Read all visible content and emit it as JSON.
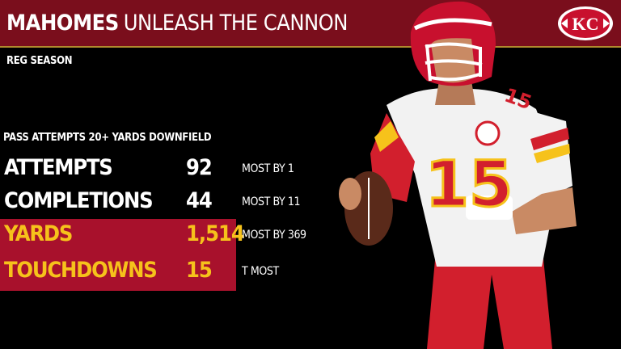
{
  "header": {
    "player": "MAHOMES",
    "headline": "UNLEASH THE CANNON",
    "logo_text": "KC"
  },
  "season": "REG SEASON",
  "stats": {
    "title": "PASS ATTEMPTS 20+ YARDS DOWNFIELD",
    "rows": [
      {
        "label": "ATTEMPTS",
        "value": "92",
        "note": "MOST BY 1"
      },
      {
        "label": "COMPLETIONS",
        "value": "44",
        "note": "MOST BY 11"
      },
      {
        "label": "YARDS",
        "value": "1,514",
        "note": "MOST BY 369"
      },
      {
        "label": "TOUCHDOWNS",
        "value": "15",
        "note": "T MOST"
      }
    ]
  },
  "jersey_number": "15",
  "colors": {
    "header_bg": "#7a0e1c",
    "highlight_bg": "#a8112c",
    "highlight_text": "#f6c21b",
    "accent_gold": "#b08a2e"
  }
}
